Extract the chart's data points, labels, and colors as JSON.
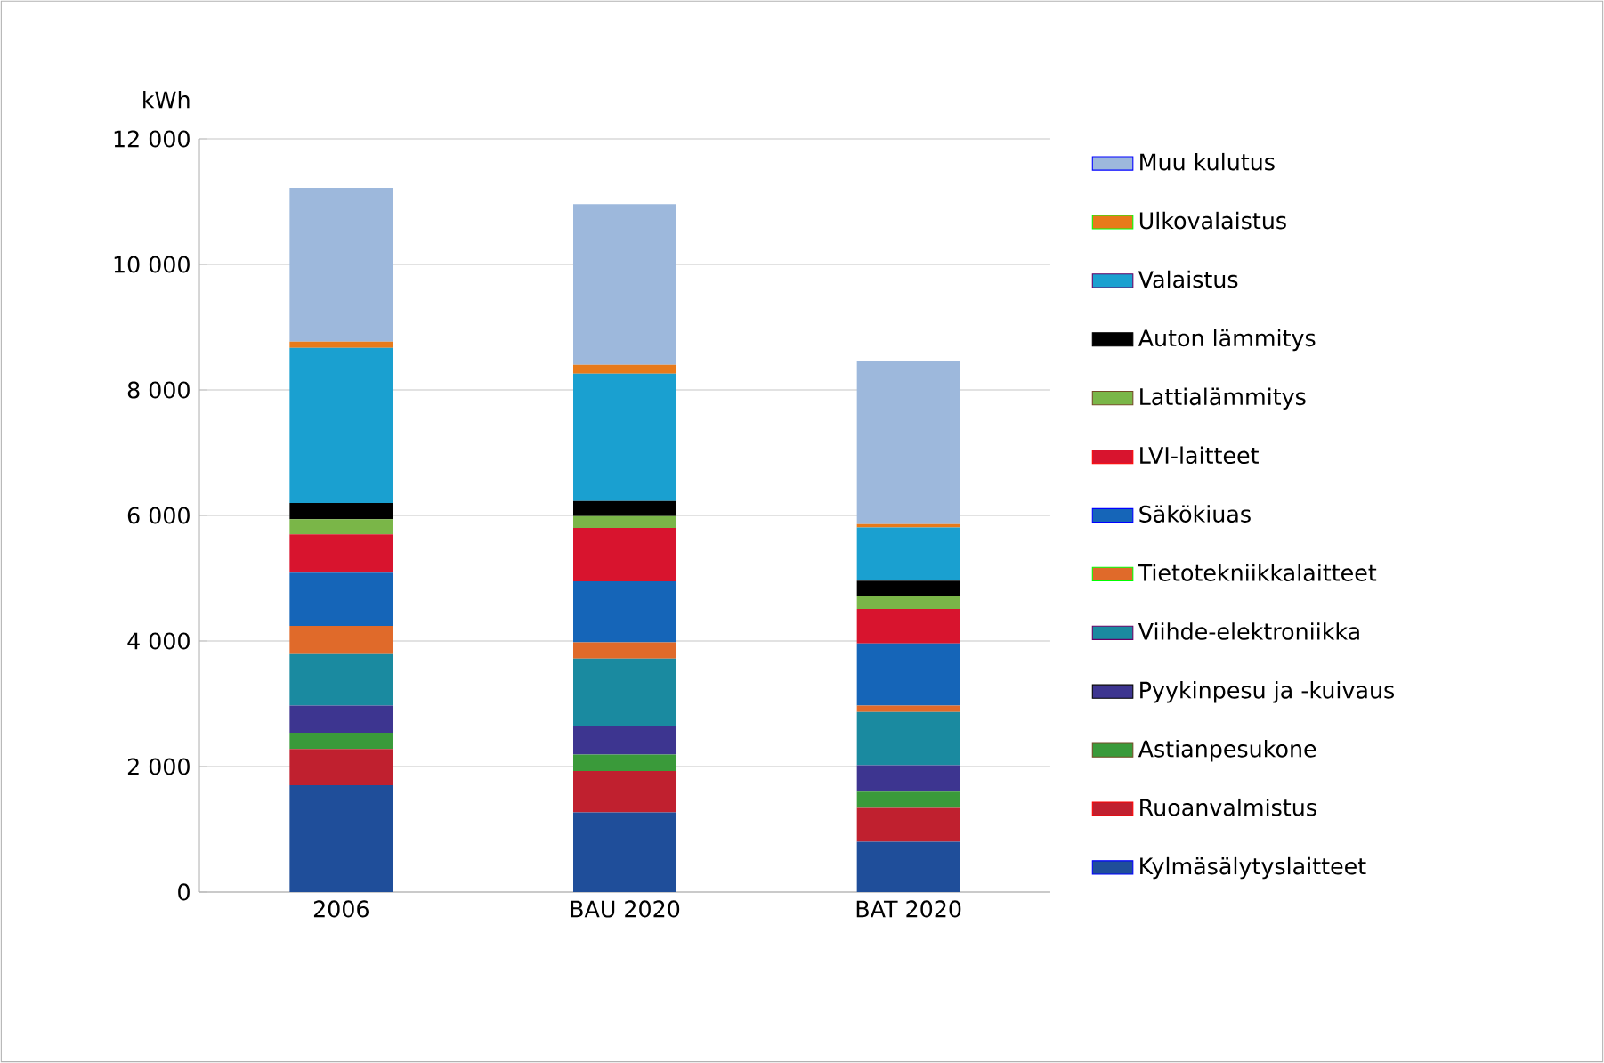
{
  "chart_data": {
    "type": "bar",
    "stacked": true,
    "ylabel": "kWh",
    "categories": [
      "2006",
      "BAU 2020",
      "BAT 2020"
    ],
    "series": [
      {
        "name": "Kylmäsälytyslaitteet",
        "color": "#1f4e9a",
        "values": [
          1700,
          1270,
          800
        ]
      },
      {
        "name": "Ruoanvalmistus",
        "color": "#c0202f",
        "values": [
          580,
          660,
          540
        ]
      },
      {
        "name": "Astianpesukone",
        "color": "#3a9a3a",
        "values": [
          260,
          260,
          260
        ]
      },
      {
        "name": "Pyykinpesu ja -kuivaus",
        "color": "#3d3590",
        "values": [
          430,
          450,
          420
        ]
      },
      {
        "name": "Viihde-elektroniikka",
        "color": "#1a8aa0",
        "values": [
          820,
          1080,
          850
        ]
      },
      {
        "name": "Tietotekniikkalaitteet",
        "color": "#e06a2a",
        "values": [
          450,
          260,
          100
        ]
      },
      {
        "name": "Säkökiuas",
        "color": "#1565b8",
        "values": [
          850,
          970,
          990
        ]
      },
      {
        "name": "LVI-laitteet",
        "color": "#d8142e",
        "values": [
          610,
          850,
          550
        ]
      },
      {
        "name": "Lattialämmitys",
        "color": "#7ab648",
        "values": [
          240,
          190,
          210
        ]
      },
      {
        "name": "Auton lämmitys",
        "color": "#000000",
        "values": [
          260,
          240,
          240
        ]
      },
      {
        "name": "Valaistus",
        "color": "#1aa0d0",
        "values": [
          2470,
          2030,
          850
        ]
      },
      {
        "name": "Ulkovalaistus",
        "color": "#e87a1a",
        "values": [
          100,
          140,
          50
        ]
      },
      {
        "name": "Muu kulutus",
        "color": "#9db8dc",
        "values": [
          2450,
          2560,
          2600
        ]
      }
    ],
    "ylim": [
      0,
      12000
    ],
    "yticks": [
      {
        "value": 0,
        "label": "0"
      },
      {
        "value": 2000,
        "label": "2 000"
      },
      {
        "value": 4000,
        "label": "4 000"
      },
      {
        "value": 6000,
        "label": "6 000"
      },
      {
        "value": 8000,
        "label": "8 000"
      },
      {
        "value": 10000,
        "label": "10 000"
      },
      {
        "value": 12000,
        "label": "12 000"
      }
    ],
    "grid": "y",
    "legend": "right"
  }
}
